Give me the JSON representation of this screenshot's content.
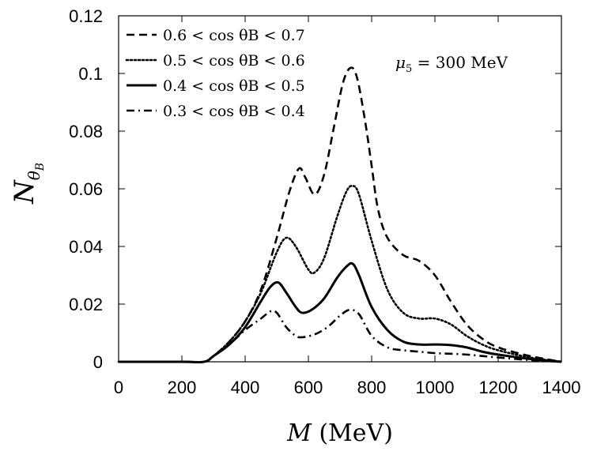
{
  "chart_data": {
    "type": "line",
    "xlabel": "M (MeV)",
    "ylabel": "N_θB",
    "xlim": [
      0,
      1400
    ],
    "ylim": [
      0,
      0.12
    ],
    "xticks": [
      "0",
      "200",
      "400",
      "600",
      "800",
      "1000",
      "1200",
      "1400"
    ],
    "yticks": [
      "0",
      "0.02",
      "0.04",
      "0.06",
      "0.08",
      "0.1",
      "0.12"
    ],
    "annotation": "μ5 = 300 MeV",
    "legend_position": "top-left",
    "series": [
      {
        "name": "0.6 < cos θB < 0.7",
        "style": "dashed",
        "x": [
          0,
          200,
          270,
          300,
          350,
          400,
          450,
          500,
          540,
          570,
          590,
          620,
          650,
          680,
          710,
          735,
          755,
          780,
          800,
          820,
          850,
          900,
          950,
          1000,
          1050,
          1100,
          1150,
          1200,
          1300,
          1400
        ],
        "y": [
          0,
          0,
          0,
          0.002,
          0.007,
          0.014,
          0.025,
          0.043,
          0.059,
          0.067,
          0.064,
          0.058,
          0.065,
          0.081,
          0.097,
          0.102,
          0.098,
          0.083,
          0.068,
          0.053,
          0.043,
          0.037,
          0.035,
          0.03,
          0.021,
          0.013,
          0.008,
          0.005,
          0.002,
          0.0
        ]
      },
      {
        "name": "0.5 < cos θB < 0.6",
        "style": "dotted",
        "x": [
          0,
          200,
          270,
          300,
          350,
          400,
          450,
          500,
          530,
          560,
          600,
          620,
          650,
          690,
          720,
          740,
          760,
          800,
          850,
          900,
          950,
          1000,
          1050,
          1100,
          1150,
          1200,
          1300,
          1400
        ],
        "y": [
          0,
          0,
          0,
          0.002,
          0.007,
          0.014,
          0.024,
          0.038,
          0.043,
          0.04,
          0.032,
          0.031,
          0.036,
          0.05,
          0.059,
          0.061,
          0.058,
          0.042,
          0.025,
          0.017,
          0.015,
          0.015,
          0.013,
          0.009,
          0.006,
          0.004,
          0.0015,
          0.0
        ]
      },
      {
        "name": "0.4 < cos θB < 0.5",
        "style": "solid",
        "x": [
          0,
          200,
          270,
          300,
          350,
          400,
          450,
          480,
          505,
          530,
          560,
          580,
          610,
          650,
          690,
          720,
          740,
          760,
          800,
          850,
          900,
          950,
          1000,
          1050,
          1100,
          1150,
          1200,
          1300,
          1400
        ],
        "y": [
          0,
          0,
          0,
          0.002,
          0.006,
          0.012,
          0.021,
          0.026,
          0.0275,
          0.024,
          0.019,
          0.017,
          0.018,
          0.022,
          0.029,
          0.033,
          0.034,
          0.03,
          0.019,
          0.011,
          0.007,
          0.006,
          0.006,
          0.0058,
          0.005,
          0.0035,
          0.0025,
          0.001,
          0.0
        ]
      },
      {
        "name": "0.3 < cos θB < 0.4",
        "style": "dashdot",
        "x": [
          0,
          200,
          270,
          300,
          350,
          400,
          450,
          480,
          500,
          530,
          560,
          580,
          620,
          660,
          700,
          730,
          760,
          800,
          850,
          900,
          950,
          1000,
          1050,
          1100,
          1150,
          1200,
          1300,
          1400
        ],
        "y": [
          0,
          0,
          0,
          0.002,
          0.006,
          0.011,
          0.015,
          0.0175,
          0.017,
          0.012,
          0.009,
          0.0085,
          0.0095,
          0.012,
          0.016,
          0.018,
          0.0165,
          0.009,
          0.005,
          0.004,
          0.0035,
          0.003,
          0.0028,
          0.0025,
          0.002,
          0.0015,
          0.0006,
          0.0
        ]
      }
    ]
  }
}
